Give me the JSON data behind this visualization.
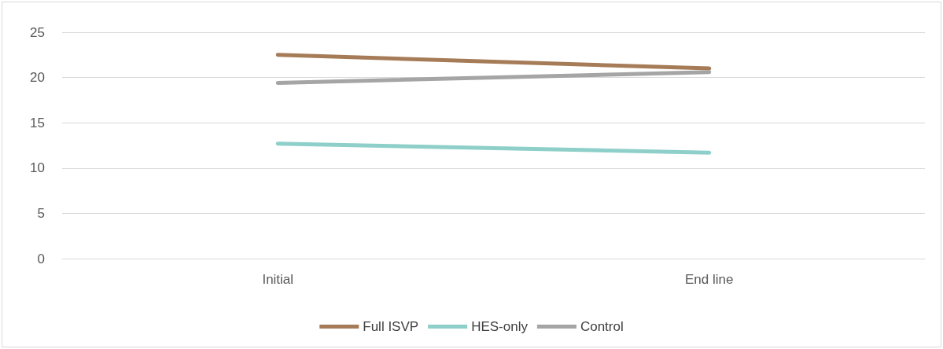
{
  "chart_data": {
    "type": "line",
    "categories": [
      "Initial",
      "End line"
    ],
    "series": [
      {
        "name": "Full ISVP",
        "color": "#a67c58",
        "values": [
          22.5,
          21.0
        ]
      },
      {
        "name": "HES-only",
        "color": "#8ecfc9",
        "values": [
          12.7,
          11.7
        ]
      },
      {
        "name": "Control",
        "color": "#a5a5a5",
        "values": [
          19.4,
          20.6
        ]
      }
    ],
    "ylim": [
      0,
      25
    ],
    "yticks": [
      0,
      5,
      10,
      15,
      20,
      25
    ],
    "grid": "y",
    "legend": "bottom",
    "marker": "none",
    "line_style": "solid"
  }
}
